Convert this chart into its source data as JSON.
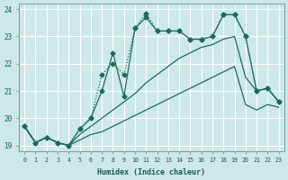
{
  "xlabel": "Humidex (Indice chaleur)",
  "bg_color": "#cce8e8",
  "grid_color": "#ffffff",
  "line_color": "#1a6b5a",
  "xlim": [
    -0.5,
    23.5
  ],
  "ylim": [
    18.8,
    24.2
  ],
  "yticks": [
    19,
    20,
    21,
    22,
    23,
    24
  ],
  "xticks": [
    0,
    1,
    2,
    3,
    4,
    5,
    6,
    7,
    8,
    9,
    10,
    11,
    12,
    13,
    14,
    15,
    16,
    17,
    18,
    19,
    20,
    21,
    22,
    23
  ],
  "series_bottom_x": [
    0,
    1,
    2,
    3,
    4,
    5,
    6,
    7,
    8,
    9,
    10,
    11,
    12,
    13,
    14,
    15,
    16,
    17,
    18,
    19,
    20,
    21,
    22,
    23
  ],
  "series_bottom_y": [
    19.7,
    19.1,
    19.3,
    19.1,
    19.0,
    19.2,
    19.4,
    19.5,
    19.7,
    19.9,
    20.1,
    20.3,
    20.5,
    20.7,
    20.9,
    21.1,
    21.3,
    21.5,
    21.7,
    21.9,
    20.5,
    20.3,
    20.5,
    20.4
  ],
  "series_mid_x": [
    0,
    1,
    2,
    3,
    4,
    5,
    6,
    7,
    8,
    9,
    10,
    11,
    12,
    13,
    14,
    15,
    16,
    17,
    18,
    19,
    20,
    21,
    22,
    23
  ],
  "series_mid_y": [
    19.7,
    19.1,
    19.3,
    19.1,
    19.0,
    19.4,
    19.7,
    20.0,
    20.3,
    20.6,
    20.9,
    21.3,
    21.6,
    21.9,
    22.2,
    22.4,
    22.6,
    22.7,
    22.9,
    23.0,
    21.5,
    21.0,
    21.1,
    20.6
  ],
  "series_jagged_x": [
    0,
    1,
    2,
    3,
    4,
    5,
    6,
    7,
    8,
    9,
    10,
    11,
    12,
    13,
    14,
    15,
    16,
    17,
    18,
    19,
    20,
    21,
    22,
    23
  ],
  "series_jagged_y": [
    19.7,
    19.1,
    19.3,
    19.1,
    19.0,
    19.6,
    20.0,
    21.0,
    22.4,
    20.8,
    23.3,
    23.7,
    23.2,
    23.2,
    23.2,
    22.9,
    22.9,
    23.0,
    23.8,
    23.8,
    23.0,
    21.0,
    21.1,
    20.6
  ],
  "series_top_x": [
    0,
    1,
    2,
    3,
    4,
    5,
    6,
    7,
    8,
    9,
    10,
    11,
    12,
    13,
    14,
    15,
    16,
    17,
    18,
    19,
    20,
    21,
    22,
    23
  ],
  "series_top_y": [
    19.7,
    19.1,
    19.3,
    19.1,
    19.0,
    19.6,
    20.0,
    21.6,
    22.0,
    21.6,
    23.3,
    23.85,
    23.2,
    23.2,
    23.2,
    22.9,
    22.9,
    23.0,
    23.8,
    23.8,
    23.0,
    21.0,
    21.1,
    20.6
  ]
}
